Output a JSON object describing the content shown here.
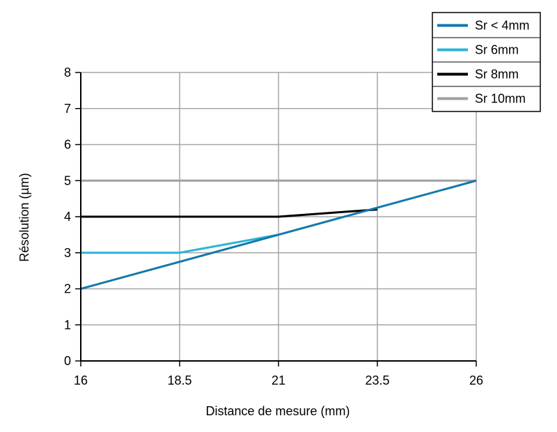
{
  "chart_data": {
    "type": "line",
    "title": "",
    "xlabel": "Distance de mesure (mm)",
    "ylabel": "Résolution (µm)",
    "x_ticks": [
      "16",
      "18.5",
      "21",
      "23.5",
      "26"
    ],
    "y_ticks": [
      "0",
      "1",
      "2",
      "3",
      "4",
      "5",
      "6",
      "7",
      "8"
    ],
    "xlim": [
      16,
      26
    ],
    "ylim": [
      0,
      8
    ],
    "grid": true,
    "legend_position": "top-right",
    "series": [
      {
        "name": "Sr 10mm",
        "color": "#a0a0a0",
        "x": [
          16,
          26
        ],
        "y": [
          5,
          5
        ]
      },
      {
        "name": "Sr 8mm",
        "color": "#000000",
        "x": [
          16,
          21,
          23.5
        ],
        "y": [
          4,
          4,
          4.2
        ]
      },
      {
        "name": "Sr 6mm",
        "color": "#2db3d6",
        "x": [
          16,
          18.5,
          21
        ],
        "y": [
          3,
          3,
          3.5
        ]
      },
      {
        "name": "Sr < 4mm",
        "color": "#1178ad",
        "x": [
          16,
          26
        ],
        "y": [
          2,
          5
        ]
      }
    ],
    "legend_order": [
      "Sr < 4mm",
      "Sr 6mm",
      "Sr 8mm",
      "Sr 10mm"
    ]
  }
}
